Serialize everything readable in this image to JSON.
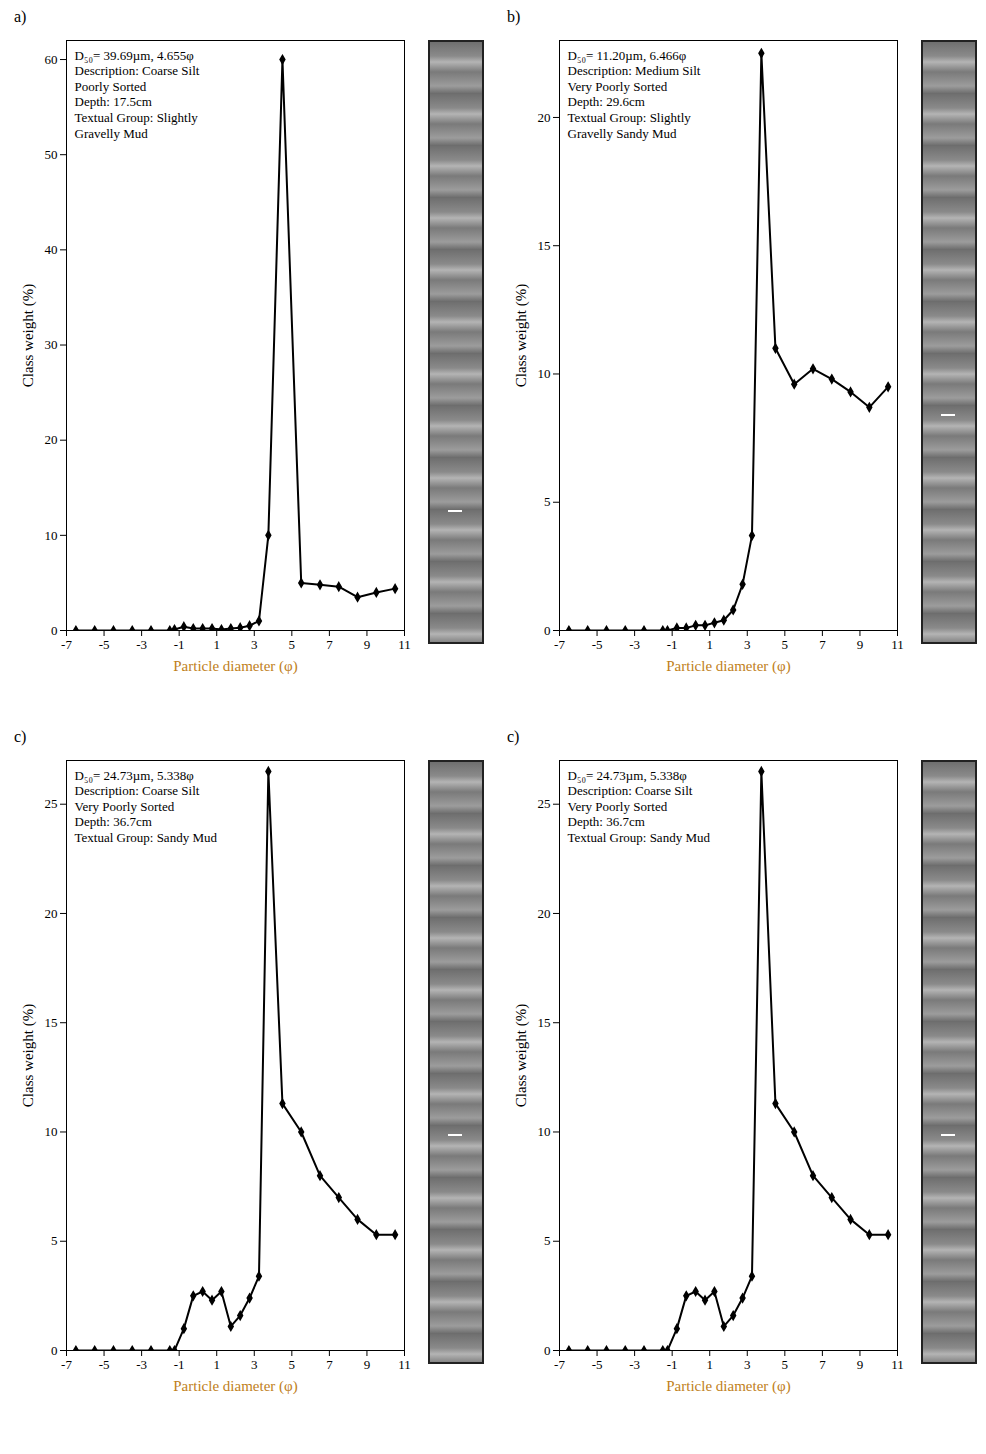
{
  "chart_data": [
    {
      "type": "line",
      "panel_label": "a)",
      "color": "#000000",
      "marker": "diamond",
      "x_label": "Particle diameter (φ)",
      "y_label": "Class weight (%)",
      "annotations": [
        "D₅₀= 39.69µm, 4.655φ",
        "Description: Coarse Silt",
        "Poorly Sorted",
        "Depth: 17.5cm",
        "Textual Group: Slightly Gravelly Mud"
      ],
      "x": [
        -6.5,
        -5.5,
        -4.5,
        -3.5,
        -2.5,
        -1.5,
        -1.25,
        -0.75,
        -0.25,
        0.25,
        0.75,
        1.25,
        1.75,
        2.25,
        2.75,
        3.25,
        3.75,
        4.5,
        5.5,
        6.5,
        7.5,
        8.5,
        9.5,
        10.5
      ],
      "values": [
        0,
        0,
        0,
        0,
        0,
        0,
        0.1,
        0.4,
        0.2,
        0.2,
        0.2,
        0.1,
        0.2,
        0.3,
        0.5,
        1,
        10,
        60,
        5,
        4.8,
        4.6,
        3.5,
        4,
        4.4
      ],
      "xlim": [
        -7,
        11
      ],
      "xticks": [
        -7,
        -5,
        -3,
        -1,
        1,
        3,
        5,
        7,
        9,
        11
      ],
      "ylim": [
        0,
        62
      ],
      "yticks": [
        0,
        10,
        20,
        30,
        40,
        50,
        60
      ]
    },
    {
      "type": "line",
      "panel_label": "b)",
      "color": "#000000",
      "marker": "diamond",
      "x_label": "Particle diameter (φ)",
      "y_label": "Class weight (%)",
      "annotations": [
        "D₅₀= 11.20µm, 6.466φ",
        "Description: Medium Silt",
        "Very Poorly Sorted",
        "Depth: 29.6cm",
        "Textual Group: Slightly Gravelly Sandy Mud"
      ],
      "x": [
        -6.5,
        -5.5,
        -4.5,
        -3.5,
        -2.5,
        -1.5,
        -1.25,
        -0.75,
        -0.25,
        0.25,
        0.75,
        1.25,
        1.75,
        2.25,
        2.75,
        3.25,
        3.75,
        4.5,
        5.5,
        6.5,
        7.5,
        8.5,
        9.5,
        10.5
      ],
      "values": [
        0,
        0,
        0,
        0,
        0,
        0,
        0,
        0.1,
        0.1,
        0.2,
        0.2,
        0.3,
        0.4,
        0.8,
        1.8,
        3.7,
        22.5,
        11,
        9.6,
        10.2,
        9.8,
        9.3,
        8.7,
        9.5
      ],
      "xlim": [
        -7,
        11
      ],
      "xticks": [
        -7,
        -5,
        -3,
        -1,
        1,
        3,
        5,
        7,
        9,
        11
      ],
      "ylim": [
        0,
        23
      ],
      "yticks": [
        0,
        5,
        10,
        15,
        20
      ]
    },
    {
      "type": "line",
      "panel_label": "c)",
      "color": "#000000",
      "marker": "diamond",
      "x_label": "Particle diameter (φ)",
      "y_label": "Class weight (%)",
      "annotations": [
        "D₅₀= 24.73µm, 5.338φ",
        "Description: Coarse Silt",
        "Very Poorly Sorted",
        "Depth: 36.7cm",
        "Textual Group: Sandy Mud"
      ],
      "x": [
        -6.5,
        -5.5,
        -4.5,
        -3.5,
        -2.5,
        -1.5,
        -1.25,
        -0.75,
        -0.25,
        0.25,
        0.75,
        1.25,
        1.75,
        2.25,
        2.75,
        3.25,
        3.75,
        4.5,
        5.5,
        6.5,
        7.5,
        8.5,
        9.5,
        10.5
      ],
      "values": [
        0,
        0,
        0,
        0,
        0,
        0,
        0,
        1,
        2.5,
        2.7,
        2.3,
        2.7,
        1.1,
        1.6,
        2.4,
        3.4,
        26.5,
        11.3,
        10,
        8,
        7,
        6,
        5.3,
        5.3
      ],
      "xlim": [
        -7,
        11
      ],
      "xticks": [
        -7,
        -5,
        -3,
        -1,
        1,
        3,
        5,
        7,
        9,
        11
      ],
      "ylim": [
        0,
        27
      ],
      "yticks": [
        0,
        5,
        10,
        15,
        20,
        25
      ]
    },
    {
      "type": "line",
      "panel_label": "c)",
      "color": "#000000",
      "marker": "diamond",
      "x_label": "Particle diameter (φ)",
      "y_label": "Class weight (%)",
      "annotations": [
        "D₅₀= 24.73µm, 5.338φ",
        "Description: Coarse Silt",
        "Very Poorly Sorted",
        "Depth: 36.7cm",
        "Textual Group: Sandy Mud"
      ],
      "x": [
        -6.5,
        -5.5,
        -4.5,
        -3.5,
        -2.5,
        -1.5,
        -1.25,
        -0.75,
        -0.25,
        0.25,
        0.75,
        1.25,
        1.75,
        2.25,
        2.75,
        3.25,
        3.75,
        4.5,
        5.5,
        6.5,
        7.5,
        8.5,
        9.5,
        10.5
      ],
      "values": [
        0,
        0,
        0,
        0,
        0,
        0,
        0,
        1,
        2.5,
        2.7,
        2.3,
        2.7,
        1.1,
        1.6,
        2.4,
        3.4,
        26.5,
        11.3,
        10,
        8,
        7,
        6,
        5.3,
        5.3
      ],
      "xlim": [
        -7,
        11
      ],
      "xticks": [
        -7,
        -5,
        -3,
        -1,
        1,
        3,
        5,
        7,
        9,
        11
      ],
      "ylim": [
        0,
        27
      ],
      "yticks": [
        0,
        5,
        10,
        15,
        20,
        25
      ]
    }
  ]
}
